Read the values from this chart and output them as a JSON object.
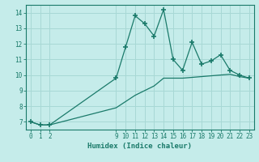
{
  "xlabel": "Humidex (Indice chaleur)",
  "background_color": "#c5ecea",
  "grid_color": "#a8d8d5",
  "line_color": "#1a7a6a",
  "hours": [
    0,
    1,
    2,
    9,
    10,
    11,
    12,
    13,
    14,
    15,
    16,
    17,
    18,
    19,
    20,
    21,
    22,
    23
  ],
  "values_main": [
    7.0,
    6.8,
    6.8,
    9.8,
    11.8,
    13.8,
    13.3,
    12.5,
    14.2,
    11.0,
    10.3,
    12.1,
    10.7,
    10.9,
    11.3,
    10.3,
    10.0,
    9.8
  ],
  "hours_smooth": [
    0,
    1,
    2,
    9,
    10,
    11,
    12,
    13,
    14,
    15,
    16,
    17,
    18,
    19,
    20,
    21,
    22,
    23
  ],
  "values_smooth": [
    7.0,
    6.8,
    6.8,
    7.9,
    8.3,
    8.7,
    9.0,
    9.3,
    9.8,
    9.8,
    9.8,
    9.85,
    9.9,
    9.95,
    10.0,
    10.05,
    9.9,
    9.8
  ],
  "ylim": [
    6.5,
    14.5
  ],
  "xlim": [
    -0.5,
    23.5
  ],
  "yticks": [
    7,
    8,
    9,
    10,
    11,
    12,
    13,
    14
  ],
  "xticks": [
    0,
    1,
    2,
    9,
    10,
    11,
    12,
    13,
    14,
    15,
    16,
    17,
    18,
    19,
    20,
    21,
    22,
    23
  ],
  "grid_xticks": [
    0,
    1,
    2,
    3,
    4,
    5,
    6,
    7,
    8,
    9,
    10,
    11,
    12,
    13,
    14,
    15,
    16,
    17,
    18,
    19,
    20,
    21,
    22,
    23
  ]
}
